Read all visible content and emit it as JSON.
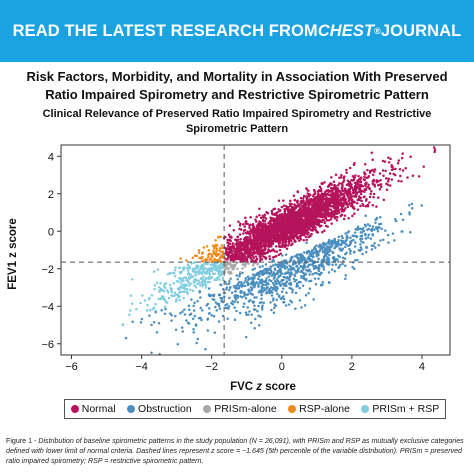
{
  "banner": {
    "text_before": "READ THE LATEST RESEARCH FROM ",
    "journal": "CHEST",
    "reg_mark": "®",
    "text_after": " JOURNAL"
  },
  "title_line1": "Risk Factors, Morbidity, and Mortality in Association With Preserved",
  "title_line2": "Ratio Impaired Spirometry and Restrictive Spirometric Pattern",
  "subtitle_line1": "Clinical Relevance of Preserved Ratio Impaired Spirometry and Restrictive",
  "subtitle_line2": "Spirometric Pattern",
  "chart_data": {
    "type": "scatter",
    "title": "",
    "xlabel_main": "FVC ",
    "xlabel_italic": "z",
    "xlabel_tail": " score",
    "ylabel": "FEV1 z score",
    "xlim": [
      -6.3,
      4.8
    ],
    "ylim": [
      -6.6,
      4.6
    ],
    "x_ticks": [
      -6,
      -4,
      -2,
      0,
      2,
      4
    ],
    "y_ticks": [
      -6,
      -4,
      -2,
      0,
      2,
      4
    ],
    "threshold_lines": {
      "x": -1.645,
      "y": -1.645,
      "style": "dashed"
    },
    "grid": false,
    "series": [
      {
        "name": "Normal",
        "color": "#b5145c"
      },
      {
        "name": "Obstruction",
        "color": "#4a8ec0"
      },
      {
        "name": "PRISm-alone",
        "color": "#a8a8a8"
      },
      {
        "name": "RSP-alone",
        "color": "#f08a1c"
      },
      {
        "name": "PRISm + RSP",
        "color": "#80cde0"
      }
    ],
    "n_points": 26091,
    "legend_position": "bottom"
  },
  "caption": {
    "prefix": "Figure 1 - ",
    "body": "Distribution of baseline spirometric patterns in the study population (N = 26,091), with PRISm and RSP as mutually exclusive categories defined with lower limit of normal criteria. Dashed lines represent z score = −1.645 (5th percentile of the variable distribution). PRISm = preserved ratio impaired spirometry; RSP = restrictive spirometric pattern."
  }
}
